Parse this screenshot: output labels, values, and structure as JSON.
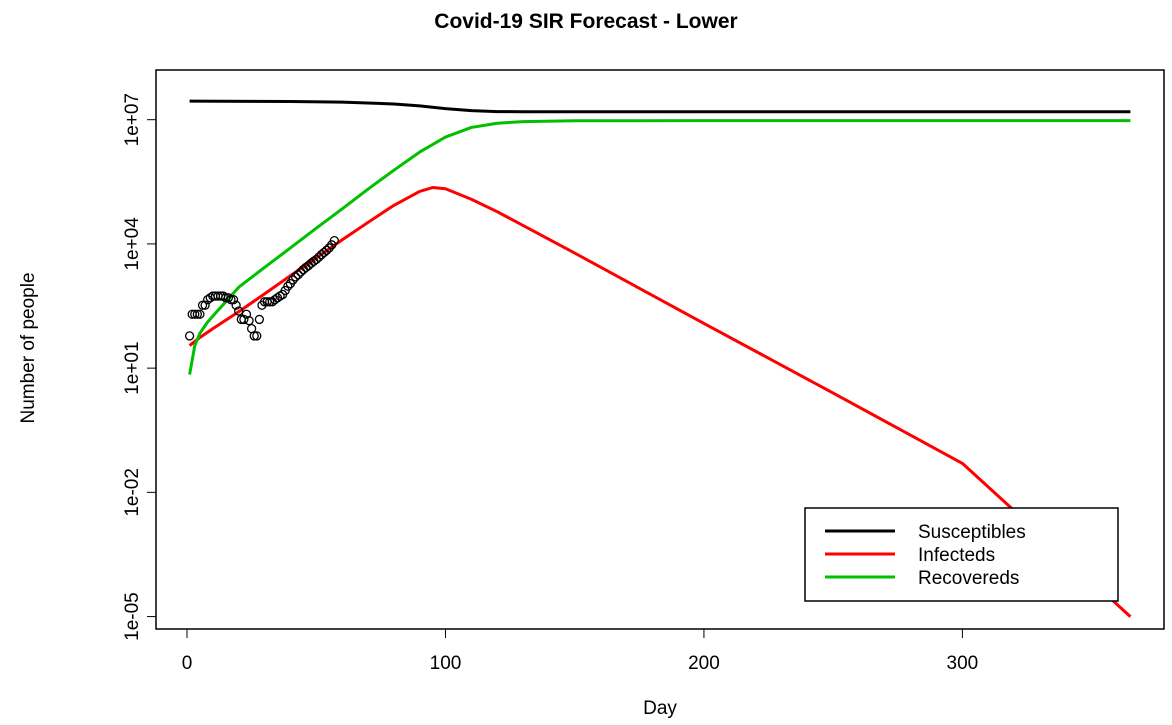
{
  "chart_data": {
    "type": "line",
    "title": "Covid-19 SIR Forecast - Lower",
    "xlabel": "Day",
    "ylabel": "Number of people",
    "xlim": [
      -12,
      378
    ],
    "ylim_log10": [
      -5.3,
      8.2
    ],
    "y_scale": "log",
    "x_ticks": [
      0,
      100,
      200,
      300
    ],
    "x_tick_labels": [
      "0",
      "100",
      "200",
      "300"
    ],
    "y_ticks": [
      1e-05,
      0.01,
      10,
      10000,
      10000000
    ],
    "y_tick_labels": [
      "1e-05",
      "1e-02",
      "1e+01",
      "1e+04",
      "1e+07"
    ],
    "grid": false,
    "legend": {
      "position": "bottom-right",
      "entries": [
        "Susceptibles",
        "Infecteds",
        "Recovereds"
      ]
    },
    "series": [
      {
        "name": "Susceptibles",
        "color": "#000000",
        "x": [
          1,
          40,
          60,
          80,
          90,
          100,
          110,
          120,
          130,
          200,
          300,
          365
        ],
        "y": [
          28000000,
          27500000,
          26500000,
          24000000,
          21500000,
          18500000,
          16500000,
          15700000,
          15500000,
          15500000,
          15500000,
          15500000
        ]
      },
      {
        "name": "Infecteds",
        "color": "#ff0000",
        "x": [
          1,
          5,
          10,
          20,
          30,
          40,
          50,
          60,
          70,
          80,
          90,
          95,
          100,
          110,
          120,
          150,
          200,
          250,
          300,
          365
        ],
        "y": [
          35,
          55,
          90,
          230,
          620,
          1700,
          4600,
          12500,
          33000,
          85000,
          185000,
          230000,
          215000,
          120000,
          60000,
          6000,
          120,
          2.5,
          0.05,
          1e-05
        ]
      },
      {
        "name": "Recovereds",
        "color": "#00c000",
        "x": [
          1,
          3,
          5,
          8,
          12,
          15,
          20,
          30,
          40,
          50,
          60,
          70,
          80,
          90,
          100,
          110,
          120,
          130,
          150,
          200,
          300,
          365
        ],
        "y": [
          7,
          35,
          70,
          130,
          250,
          400,
          900,
          2700,
          8000,
          24000,
          70000,
          210000,
          600000,
          1650000,
          3800000,
          6500000,
          8200000,
          9000000,
          9400000,
          9500000,
          9500000,
          9500000
        ]
      }
    ],
    "observed_points": {
      "name": "observed",
      "color": "#000000",
      "x": [
        1,
        2,
        3,
        4,
        5,
        6,
        7,
        8,
        9,
        10,
        11,
        12,
        13,
        14,
        15,
        16,
        17,
        18,
        19,
        20,
        21,
        22,
        23,
        24,
        25,
        26,
        27,
        28,
        29,
        30,
        31,
        32,
        33,
        34,
        35,
        36,
        37,
        38,
        39,
        40,
        41,
        42,
        43,
        44,
        45,
        46,
        47,
        48,
        49,
        50,
        51,
        52,
        53,
        54,
        55,
        56,
        57
      ],
      "y": [
        60,
        200,
        200,
        200,
        200,
        330,
        330,
        450,
        500,
        550,
        550,
        550,
        550,
        550,
        500,
        500,
        450,
        450,
        330,
        240,
        150,
        150,
        200,
        140,
        90,
        60,
        60,
        150,
        330,
        400,
        400,
        400,
        400,
        450,
        500,
        550,
        600,
        750,
        950,
        1100,
        1350,
        1600,
        1800,
        2100,
        2400,
        2700,
        3000,
        3400,
        3800,
        4200,
        4800,
        5500,
        6200,
        7000,
        8000,
        9500,
        12000
      ]
    }
  }
}
